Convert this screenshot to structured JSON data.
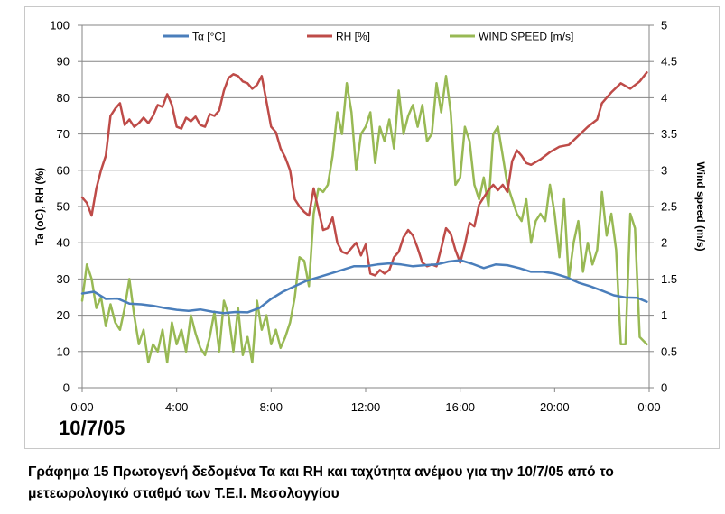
{
  "chart_data": {
    "type": "line",
    "title": "",
    "date_label": "10/7/05",
    "xlabel": "",
    "ylabel": "Ta (oC), RH (%)",
    "y2label": "Wind speed (m/s)",
    "xlim": [
      0,
      24
    ],
    "ylim": [
      0,
      100
    ],
    "y2lim": [
      0,
      5
    ],
    "x_tick_labels": [
      "0:00",
      "4:00",
      "8:00",
      "12:00",
      "16:00",
      "20:00",
      "0:00"
    ],
    "y_tick_labels": [
      "0",
      "10",
      "20",
      "30",
      "40",
      "50",
      "60",
      "70",
      "80",
      "90",
      "100"
    ],
    "y2_tick_labels": [
      "0",
      "0.5",
      "1",
      "1.5",
      "2",
      "2.5",
      "3",
      "3.5",
      "4",
      "4.5",
      "5"
    ],
    "grid": true,
    "legend_position": "top",
    "series": [
      {
        "name": "Τα [°C]",
        "color": "#4a7ebb",
        "axis": "left",
        "x": [
          0.0,
          0.5,
          1.0,
          1.5,
          2.0,
          2.5,
          3.0,
          3.5,
          4.0,
          4.5,
          5.0,
          5.5,
          6.0,
          6.5,
          7.0,
          7.5,
          8.0,
          8.5,
          9.0,
          9.5,
          10.0,
          10.5,
          11.0,
          11.5,
          12.0,
          12.5,
          13.0,
          13.5,
          14.0,
          14.5,
          15.0,
          15.5,
          16.0,
          16.5,
          17.0,
          17.5,
          18.0,
          18.5,
          19.0,
          19.5,
          20.0,
          20.5,
          21.0,
          21.5,
          22.0,
          22.5,
          23.0,
          23.5,
          23.9
        ],
        "values": [
          26.0,
          26.5,
          24.5,
          24.6,
          23.2,
          23.0,
          22.6,
          22.0,
          21.5,
          21.2,
          21.6,
          21.0,
          20.6,
          20.9,
          20.8,
          22.0,
          24.5,
          26.5,
          28.0,
          29.5,
          30.5,
          31.5,
          32.5,
          33.5,
          33.5,
          34.0,
          34.3,
          34.0,
          33.5,
          33.8,
          34.0,
          34.8,
          35.2,
          34.2,
          33.0,
          34.0,
          33.8,
          33.0,
          32.0,
          32.0,
          31.5,
          30.5,
          29.0,
          28.0,
          26.8,
          25.5,
          24.9,
          24.8,
          23.7
        ]
      },
      {
        "name": "RH [%]",
        "color": "#be4b48",
        "axis": "left",
        "x": [
          0.0,
          0.2,
          0.4,
          0.6,
          0.8,
          1.0,
          1.2,
          1.4,
          1.6,
          1.8,
          2.0,
          2.2,
          2.4,
          2.6,
          2.8,
          3.0,
          3.2,
          3.4,
          3.6,
          3.8,
          4.0,
          4.2,
          4.4,
          4.6,
          4.8,
          5.0,
          5.2,
          5.4,
          5.6,
          5.8,
          6.0,
          6.2,
          6.4,
          6.6,
          6.8,
          7.0,
          7.2,
          7.4,
          7.6,
          7.8,
          8.0,
          8.2,
          8.4,
          8.6,
          8.8,
          9.0,
          9.2,
          9.4,
          9.6,
          9.8,
          10.0,
          10.2,
          10.4,
          10.6,
          10.8,
          11.0,
          11.2,
          11.4,
          11.6,
          11.8,
          12.0,
          12.2,
          12.4,
          12.6,
          12.8,
          13.0,
          13.2,
          13.4,
          13.6,
          13.8,
          14.0,
          14.2,
          14.4,
          14.6,
          14.8,
          15.0,
          15.2,
          15.4,
          15.6,
          15.8,
          16.0,
          16.2,
          16.4,
          16.6,
          16.8,
          17.0,
          17.2,
          17.4,
          17.6,
          17.8,
          18.0,
          18.2,
          18.4,
          18.6,
          18.8,
          19.0,
          19.4,
          19.8,
          20.2,
          20.6,
          21.0,
          21.4,
          21.8,
          22.0,
          22.4,
          22.8,
          23.2,
          23.6,
          23.9
        ],
        "values": [
          52.5,
          51.0,
          47.5,
          55.0,
          60.0,
          64.0,
          75.0,
          77.0,
          78.5,
          72.5,
          74.0,
          72.0,
          73.0,
          74.5,
          73.0,
          75.0,
          78.0,
          77.5,
          81.0,
          78.0,
          72.0,
          71.5,
          74.5,
          73.5,
          74.8,
          72.5,
          72.0,
          75.5,
          75.0,
          76.5,
          82.0,
          85.5,
          86.5,
          86.0,
          84.5,
          84.0,
          82.5,
          83.5,
          86.0,
          79.0,
          72.0,
          70.5,
          66.0,
          63.5,
          60.0,
          52.0,
          50.0,
          48.5,
          47.5,
          55.0,
          49.0,
          43.5,
          44.0,
          47.0,
          40.0,
          37.5,
          37.0,
          38.5,
          40.0,
          36.5,
          39.5,
          31.5,
          31.0,
          32.5,
          31.5,
          32.5,
          36.0,
          37.5,
          41.5,
          43.5,
          42.0,
          38.5,
          34.5,
          33.5,
          34.0,
          33.5,
          38.5,
          44.0,
          42.5,
          38.0,
          34.5,
          39.5,
          45.5,
          44.5,
          50.5,
          52.5,
          54.5,
          56.0,
          54.5,
          56.0,
          54.0,
          62.5,
          65.5,
          64.0,
          62.0,
          61.5,
          63.0,
          65.0,
          66.5,
          67.0,
          69.5,
          72.0,
          74.0,
          78.5,
          81.5,
          84.0,
          82.5,
          84.5,
          87.0
        ]
      },
      {
        "name": "WIND SPEED [m/s]",
        "color": "#98b954",
        "axis": "right",
        "x": [
          0.0,
          0.2,
          0.4,
          0.6,
          0.8,
          1.0,
          1.2,
          1.4,
          1.6,
          1.8,
          2.0,
          2.2,
          2.4,
          2.6,
          2.8,
          3.0,
          3.2,
          3.4,
          3.6,
          3.8,
          4.0,
          4.2,
          4.4,
          4.6,
          4.8,
          5.0,
          5.2,
          5.4,
          5.6,
          5.8,
          6.0,
          6.2,
          6.4,
          6.6,
          6.8,
          7.0,
          7.2,
          7.4,
          7.6,
          7.8,
          8.0,
          8.2,
          8.4,
          8.6,
          8.8,
          9.0,
          9.2,
          9.4,
          9.6,
          9.8,
          10.0,
          10.2,
          10.4,
          10.6,
          10.8,
          11.0,
          11.2,
          11.4,
          11.6,
          11.8,
          12.0,
          12.2,
          12.4,
          12.6,
          12.8,
          13.0,
          13.2,
          13.4,
          13.6,
          13.8,
          14.0,
          14.2,
          14.4,
          14.6,
          14.8,
          15.0,
          15.2,
          15.4,
          15.6,
          15.8,
          16.0,
          16.2,
          16.4,
          16.6,
          16.8,
          17.0,
          17.2,
          17.4,
          17.6,
          17.8,
          18.0,
          18.2,
          18.4,
          18.6,
          18.8,
          19.0,
          19.2,
          19.4,
          19.6,
          19.8,
          20.0,
          20.2,
          20.4,
          20.6,
          20.8,
          21.0,
          21.2,
          21.4,
          21.6,
          21.8,
          22.0,
          22.2,
          22.4,
          22.6,
          22.8,
          23.0,
          23.2,
          23.4,
          23.6,
          23.9
        ],
        "values": [
          1.2,
          1.7,
          1.5,
          1.1,
          1.25,
          0.85,
          1.15,
          0.9,
          0.8,
          1.1,
          1.5,
          1.0,
          0.6,
          0.8,
          0.35,
          0.6,
          0.5,
          0.8,
          0.35,
          0.9,
          0.6,
          0.8,
          0.5,
          1.0,
          0.75,
          0.55,
          0.45,
          0.7,
          1.05,
          0.5,
          1.2,
          1.0,
          0.5,
          1.1,
          0.45,
          0.7,
          0.35,
          1.2,
          0.8,
          1.0,
          0.6,
          0.8,
          0.55,
          0.7,
          0.9,
          1.25,
          1.8,
          1.75,
          1.4,
          2.4,
          2.75,
          2.7,
          2.8,
          3.2,
          3.8,
          3.5,
          4.2,
          3.8,
          3.0,
          3.5,
          3.6,
          3.8,
          3.1,
          3.6,
          3.4,
          3.7,
          3.3,
          4.1,
          3.5,
          3.75,
          3.9,
          3.6,
          3.9,
          3.4,
          3.5,
          4.2,
          3.8,
          4.3,
          3.8,
          2.8,
          2.9,
          3.6,
          3.4,
          2.8,
          2.6,
          2.9,
          2.5,
          3.5,
          3.6,
          3.2,
          2.8,
          2.6,
          2.4,
          2.3,
          2.6,
          2.0,
          2.3,
          2.4,
          2.3,
          2.8,
          2.4,
          1.8,
          2.6,
          1.5,
          2.0,
          2.3,
          1.6,
          2.0,
          1.7,
          1.9,
          2.7,
          2.1,
          2.4,
          1.9,
          0.6,
          0.6,
          2.4,
          2.2,
          0.7,
          0.6
        ]
      }
    ]
  },
  "caption": {
    "line1": "Γράφημα 15 Πρωτογενή δεδομένα Τα και RH και ταχύτητα ανέμου για την 10/7/05 από το",
    "line2": "μετεωρολογικό σταθμό των Τ.Ε.Ι. Μεσολογγίου"
  }
}
